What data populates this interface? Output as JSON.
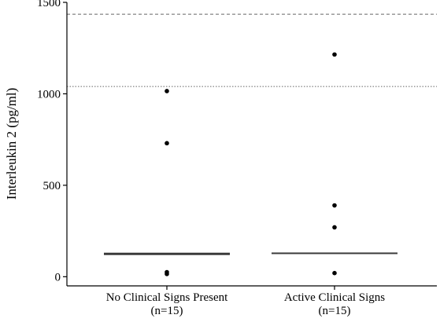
{
  "chart_data": {
    "type": "scatter",
    "ylabel": "Interleukin 2 (pg/ml)",
    "ylim": [
      -50,
      1500
    ],
    "yticks": [
      0,
      500,
      1000,
      1500
    ],
    "categories": [
      {
        "line1": "No Clinical Signs Present",
        "line2": "(n=15)"
      },
      {
        "line1": "Active Clinical Signs",
        "line2": "(n=15)"
      }
    ],
    "groups": [
      {
        "points": [
          1015,
          730,
          25,
          15
        ],
        "median": 125
      },
      {
        "points": [
          1215,
          390,
          270,
          20
        ],
        "median": 128
      }
    ],
    "reference_lines": [
      {
        "y": 1435,
        "style": "dashed"
      },
      {
        "y": 1040,
        "style": "dotted"
      }
    ],
    "colors": {
      "points": "#000000",
      "reference": "#666666",
      "axis": "#000000"
    }
  }
}
